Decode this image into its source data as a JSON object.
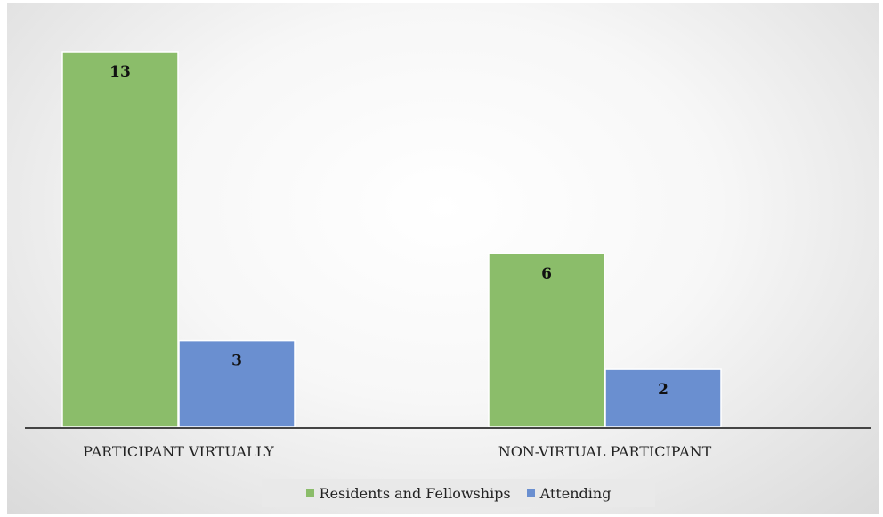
{
  "chart_data": {
    "type": "bar",
    "categories": [
      "PARTICIPANT VIRTUALLY",
      "NON-VIRTUAL PARTICIPANT"
    ],
    "series": [
      {
        "name": "Residents and Fellowships",
        "values": [
          13,
          6
        ],
        "color": "#8bbd6a"
      },
      {
        "name": "Attending",
        "values": [
          3,
          2
        ],
        "color": "#6a8fd0"
      }
    ],
    "ylim": [
      0,
      13
    ],
    "grid": false,
    "legend": "bottom",
    "data_labels": true
  }
}
